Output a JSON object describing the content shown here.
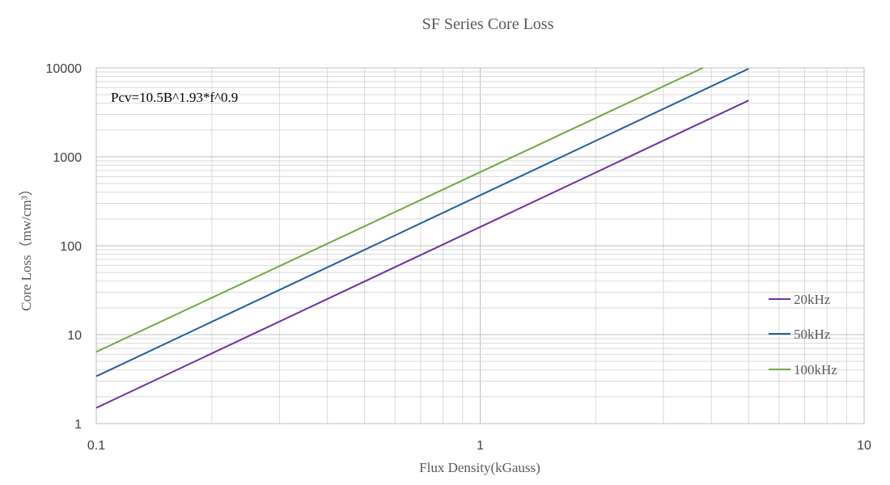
{
  "chart_data": {
    "type": "line",
    "title": "SF Series Core Loss",
    "xlabel": "Flux Density(kGauss)",
    "ylabel": "Core Loss（mw/cm³）",
    "x_scale": "log",
    "y_scale": "log",
    "xlim": [
      0.1,
      10
    ],
    "ylim": [
      1,
      10000
    ],
    "x_ticks": [
      "0.1",
      "1",
      "10"
    ],
    "y_ticks": [
      "1",
      "10",
      "100",
      "1000",
      "10000"
    ],
    "grid": true,
    "legend_position": "right",
    "annotation": "Pcv=10.5B^1.93*f^0.9",
    "series": [
      {
        "name": "20kHz",
        "color": "#7030a0",
        "x": [
          0.1,
          5
        ],
        "y": [
          1.5,
          4300
        ]
      },
      {
        "name": "50kHz",
        "color": "#1f5fa0",
        "x": [
          0.1,
          5
        ],
        "y": [
          3.4,
          9800
        ]
      },
      {
        "name": "100kHz",
        "color": "#70a845",
        "x": [
          0.1,
          3.8
        ],
        "y": [
          6.4,
          10000
        ]
      }
    ]
  }
}
